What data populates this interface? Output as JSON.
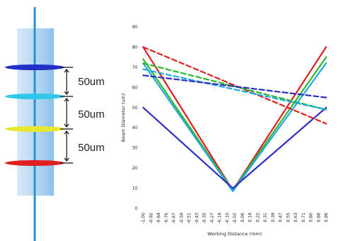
{
  "diagram": {
    "spacing_labels": [
      "50um",
      "50um",
      "50um"
    ],
    "layer_colors": [
      "#2030c8",
      "#30c8e8",
      "#e8e830",
      "#e02020"
    ]
  },
  "chart_data": {
    "type": "line",
    "xlabel": "Working Distance (mm)",
    "ylabel": "Beam Diameter (um)",
    "ylim": [
      0,
      90
    ],
    "yticks": [
      0,
      10,
      20,
      30,
      40,
      50,
      60,
      70,
      80,
      90
    ],
    "xlim": [
      -1.0,
      0.96
    ],
    "xtick_labels": [
      "-1.00",
      "-0.92",
      "-0.84",
      "-0.76",
      "-0.67",
      "-0.59",
      "-0.51",
      "-0.43",
      "-0.35",
      "-0.27",
      "-0.18",
      "-0.10",
      "-0.02",
      "0.06",
      "0.14",
      "0.22",
      "0.31",
      "0.39",
      "0.47",
      "0.55",
      "0.63",
      "0.71",
      "0.80",
      "0.88",
      "0.96"
    ],
    "grid": false,
    "series": [
      {
        "style": "solid",
        "color": "#e02020",
        "x": [
          -1.0,
          -0.04,
          0.96
        ],
        "y": [
          80,
          9,
          80
        ]
      },
      {
        "style": "solid",
        "color": "#2eb82e",
        "x": [
          -1.0,
          -0.04,
          0.96
        ],
        "y": [
          74,
          9,
          75
        ]
      },
      {
        "style": "solid",
        "color": "#20a8e0",
        "x": [
          -1.0,
          -0.04,
          0.96
        ],
        "y": [
          72,
          8.5,
          72
        ]
      },
      {
        "style": "solid",
        "color": "#3030c0",
        "x": [
          -1.0,
          -0.04,
          0.96
        ],
        "y": [
          50,
          10,
          50
        ]
      },
      {
        "style": "dashed",
        "color": "#e02020",
        "x": [
          -1.0,
          0.96
        ],
        "y": [
          80,
          42
        ]
      },
      {
        "style": "dashed",
        "color": "#2eb82e",
        "x": [
          -1.0,
          0.96
        ],
        "y": [
          72,
          49
        ]
      },
      {
        "style": "dashed",
        "color": "#20a8e0",
        "x": [
          -1.0,
          0.96
        ],
        "y": [
          69,
          49
        ]
      },
      {
        "style": "dashed",
        "color": "#3030c0",
        "x": [
          -1.0,
          0.96
        ],
        "y": [
          66,
          55
        ]
      }
    ]
  }
}
